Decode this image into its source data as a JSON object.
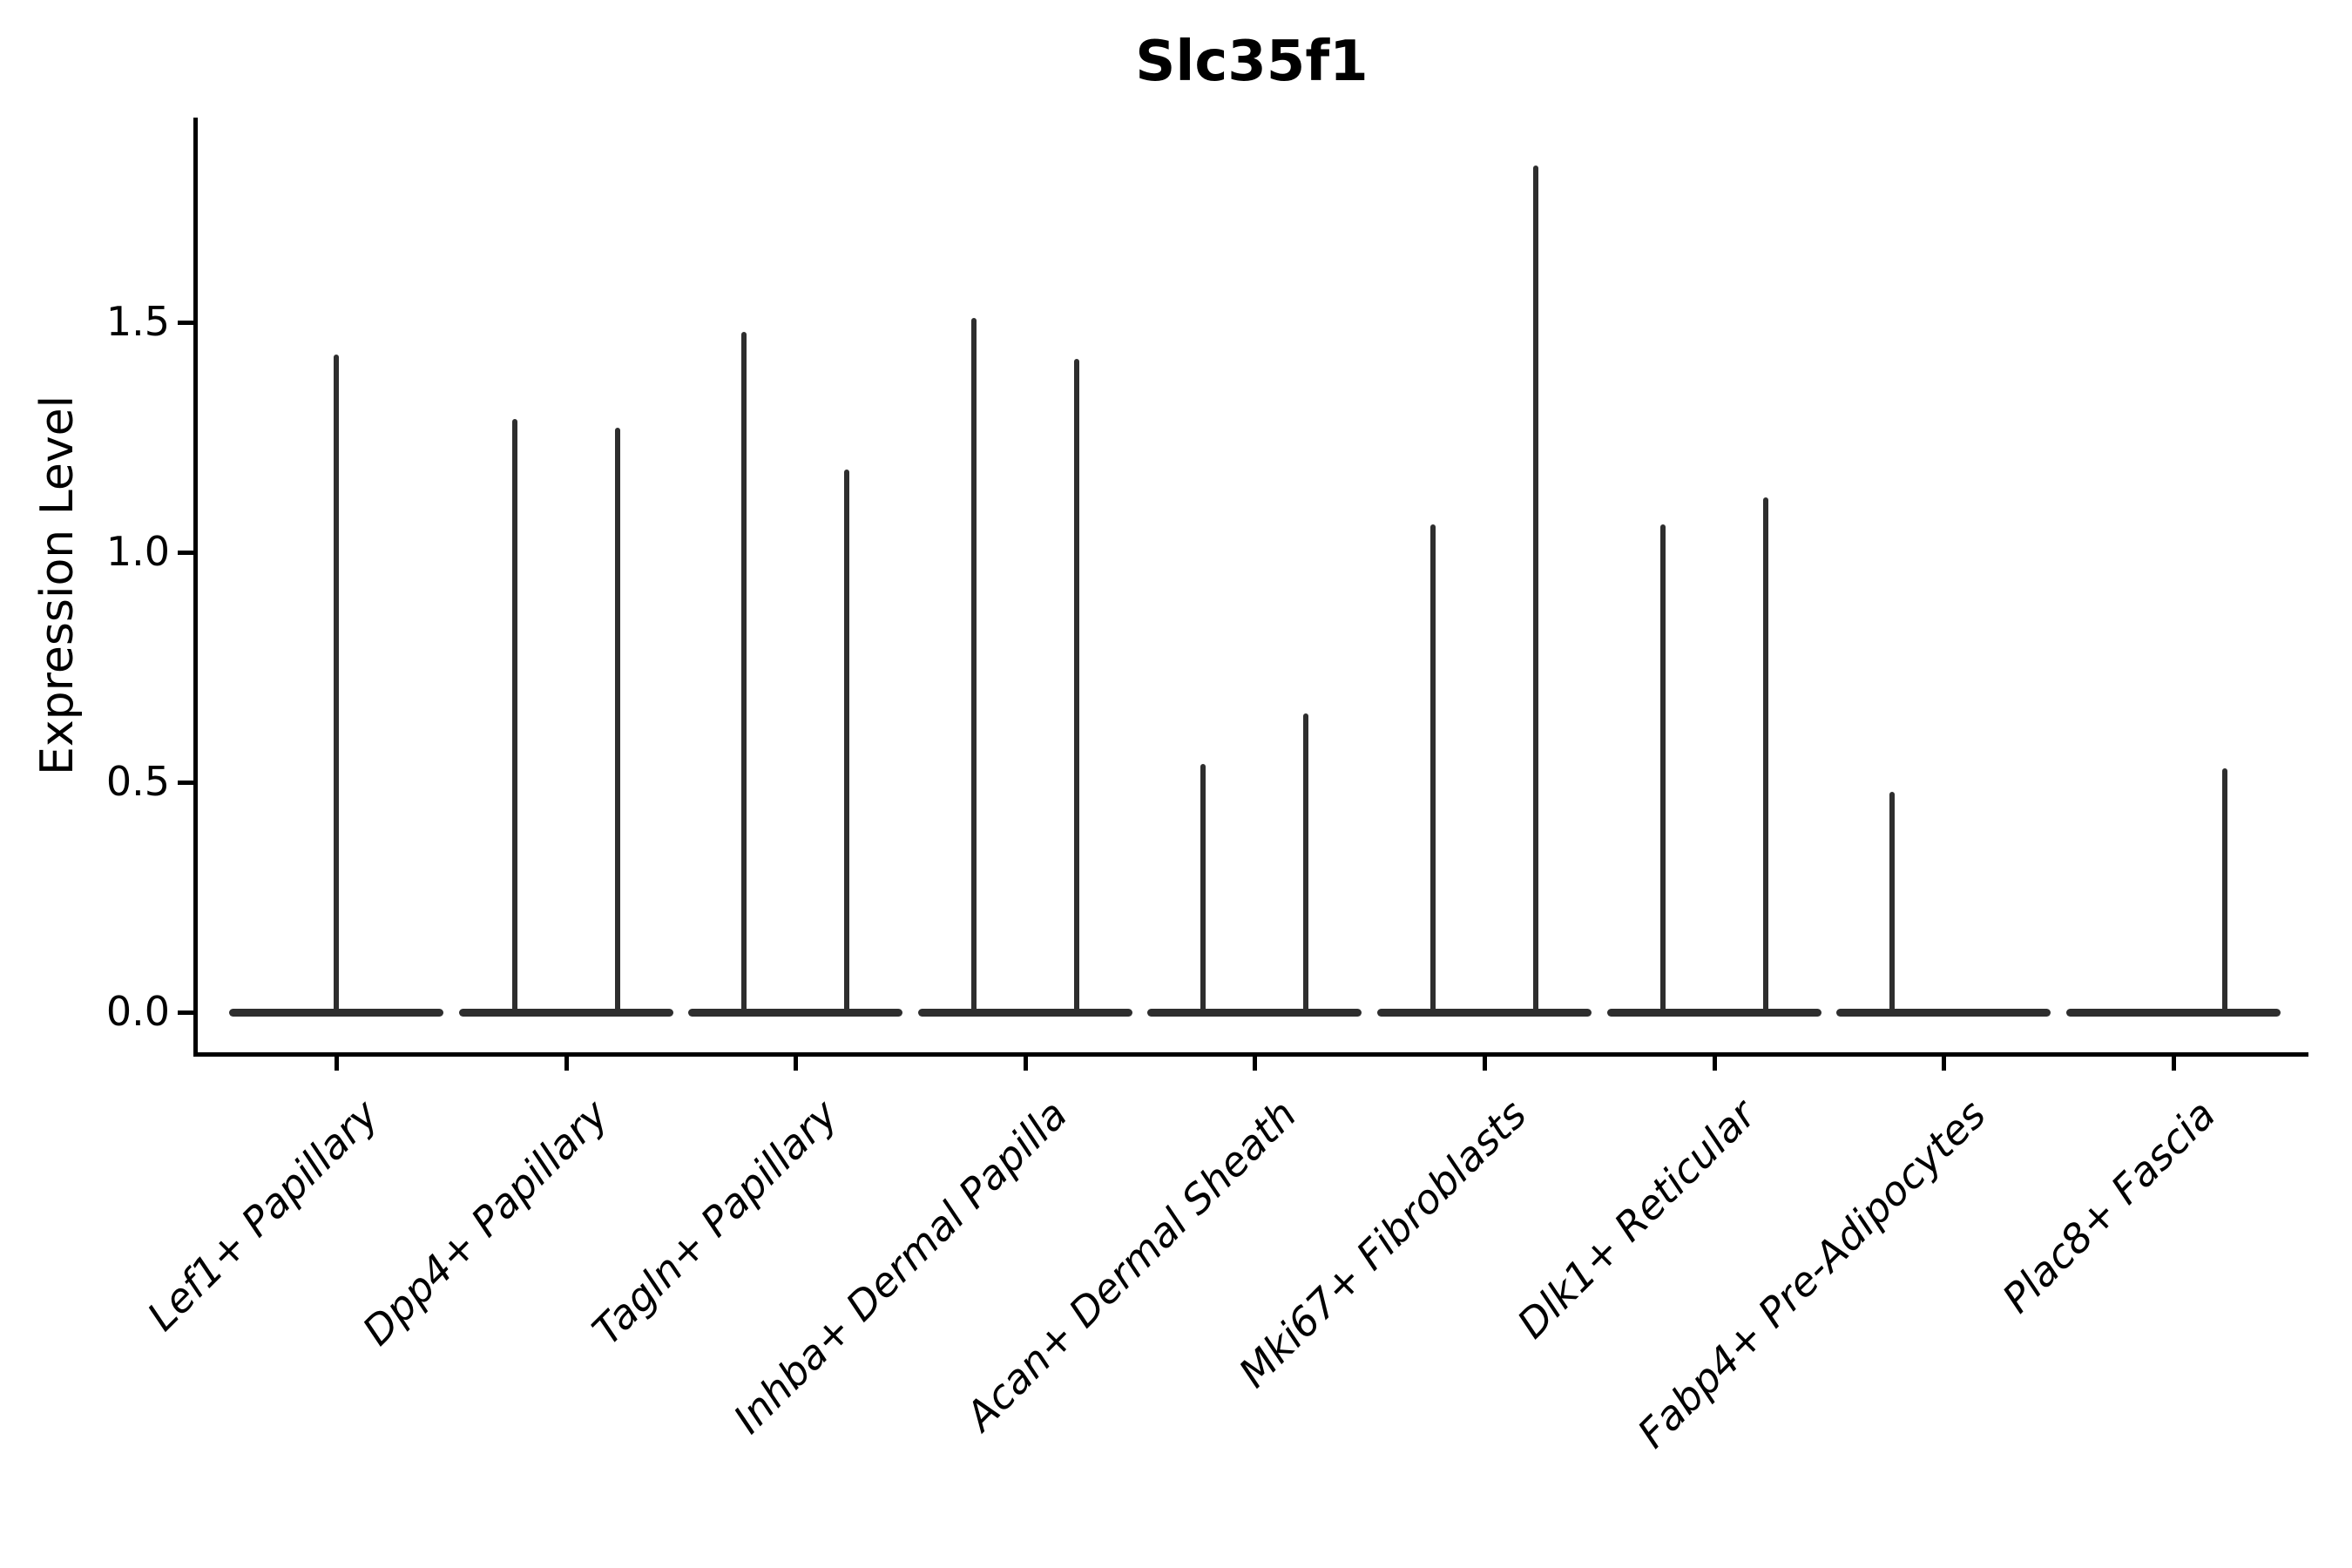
{
  "title": "Slc35f1",
  "chart_data": {
    "type": "violin",
    "title": "Slc35f1",
    "xlabel": "",
    "ylabel": "Expression Level",
    "ylim": [
      -0.09,
      1.95
    ],
    "yticks": [
      0.0,
      0.5,
      1.0,
      1.5
    ],
    "grid": false,
    "legend": "none",
    "categories": [
      "Lef1+ Papillary",
      "Dpp4+ Papillary",
      "Tagln+ Papillary",
      "Inhba+ Dermal Papilla",
      "Acan+ Dermal Sheath",
      "Mki67+ Fibroblasts",
      "Dlk1+ Reticular",
      "Fabp4+ Pre-Adipocytes",
      "Plac8+ Fascia"
    ],
    "baseline_value": 0.0,
    "series": [
      {
        "category": "Lef1+ Papillary",
        "spikes": [
          {
            "pos": "center",
            "value": 1.43
          }
        ]
      },
      {
        "category": "Dpp4+ Papillary",
        "spikes": [
          {
            "pos": "left",
            "value": 1.29
          },
          {
            "pos": "right",
            "value": 1.27
          }
        ]
      },
      {
        "category": "Tagln+ Papillary",
        "spikes": [
          {
            "pos": "left",
            "value": 1.48
          },
          {
            "pos": "right",
            "value": 1.18
          }
        ]
      },
      {
        "category": "Inhba+ Dermal Papilla",
        "spikes": [
          {
            "pos": "left",
            "value": 1.51
          },
          {
            "pos": "right",
            "value": 1.42
          }
        ]
      },
      {
        "category": "Acan+ Dermal Sheath",
        "spikes": [
          {
            "pos": "left",
            "value": 0.54
          },
          {
            "pos": "right",
            "value": 0.65
          }
        ]
      },
      {
        "category": "Mki67+ Fibroblasts",
        "spikes": [
          {
            "pos": "left",
            "value": 1.06
          },
          {
            "pos": "right",
            "value": 1.84
          }
        ]
      },
      {
        "category": "Dlk1+ Reticular",
        "spikes": [
          {
            "pos": "left",
            "value": 1.06
          },
          {
            "pos": "right",
            "value": 1.12
          }
        ]
      },
      {
        "category": "Fabp4+ Pre-Adipocytes",
        "spikes": [
          {
            "pos": "left",
            "value": 0.48
          }
        ]
      },
      {
        "category": "Plac8+ Fascia",
        "spikes": [
          {
            "pos": "right",
            "value": 0.53
          }
        ]
      }
    ],
    "colors": {
      "violin": "#2e2e2e",
      "axis": "#000000",
      "background": "#ffffff"
    }
  }
}
